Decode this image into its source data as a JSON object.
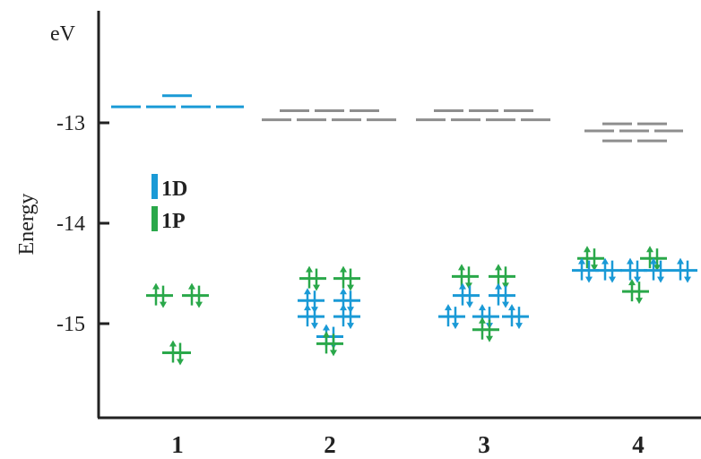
{
  "chart_data": {
    "type": "scatter",
    "title": "",
    "ylabel": "Energy",
    "yunit": "eV",
    "ylim": [
      -16.0,
      -11.9
    ],
    "yticks": [
      {
        "value": -13,
        "label": "-13"
      },
      {
        "value": -14,
        "label": "-14"
      },
      {
        "value": -15,
        "label": "-15"
      }
    ],
    "categories": [
      "1",
      "2",
      "3",
      "4"
    ],
    "grid": false,
    "legend_placement": "left",
    "legend": [
      {
        "name": "1D",
        "color": "#1a9ad6"
      },
      {
        "name": "1P",
        "color": "#2aa84a"
      }
    ],
    "columns": [
      {
        "category": "1",
        "unoccupied": [
          {
            "energy": -12.84,
            "color": "#1a9ad6"
          },
          {
            "energy": -12.84,
            "color": "#1a9ad6"
          },
          {
            "energy": -12.84,
            "color": "#1a9ad6"
          },
          {
            "energy": -12.84,
            "color": "#1a9ad6"
          },
          {
            "energy": -12.73,
            "color": "#1a9ad6"
          }
        ],
        "occupied": [
          {
            "energy": -14.72,
            "series": "1P"
          },
          {
            "energy": -14.72,
            "series": "1P"
          },
          {
            "energy": -15.29,
            "series": "1P"
          }
        ]
      },
      {
        "category": "2",
        "unoccupied": [
          {
            "energy": -12.97,
            "color": "#8e8e8e"
          },
          {
            "energy": -12.97,
            "color": "#8e8e8e"
          },
          {
            "energy": -12.97,
            "color": "#8e8e8e"
          },
          {
            "energy": -12.97,
            "color": "#8e8e8e"
          },
          {
            "energy": -12.88,
            "color": "#8e8e8e"
          },
          {
            "energy": -12.88,
            "color": "#8e8e8e"
          },
          {
            "energy": -12.88,
            "color": "#8e8e8e"
          }
        ],
        "occupied": [
          {
            "energy": -14.55,
            "series": "1P"
          },
          {
            "energy": -14.55,
            "series": "1P"
          },
          {
            "energy": -14.77,
            "series": "1D"
          },
          {
            "energy": -14.77,
            "series": "1D"
          },
          {
            "energy": -14.93,
            "series": "1D"
          },
          {
            "energy": -14.93,
            "series": "1D"
          },
          {
            "energy": -15.13,
            "series": "1D"
          },
          {
            "energy": -15.2,
            "series": "1P"
          }
        ]
      },
      {
        "category": "3",
        "unoccupied": [
          {
            "energy": -12.97,
            "color": "#8e8e8e"
          },
          {
            "energy": -12.97,
            "color": "#8e8e8e"
          },
          {
            "energy": -12.97,
            "color": "#8e8e8e"
          },
          {
            "energy": -12.97,
            "color": "#8e8e8e"
          },
          {
            "energy": -12.88,
            "color": "#8e8e8e"
          },
          {
            "energy": -12.88,
            "color": "#8e8e8e"
          },
          {
            "energy": -12.88,
            "color": "#8e8e8e"
          }
        ],
        "occupied": [
          {
            "energy": -14.53,
            "series": "1P"
          },
          {
            "energy": -14.53,
            "series": "1P"
          },
          {
            "energy": -14.72,
            "series": "1D"
          },
          {
            "energy": -14.72,
            "series": "1D"
          },
          {
            "energy": -14.93,
            "series": "1D"
          },
          {
            "energy": -14.93,
            "series": "1D"
          },
          {
            "energy": -14.93,
            "series": "1D"
          },
          {
            "energy": -15.06,
            "series": "1P"
          }
        ]
      },
      {
        "category": "4",
        "unoccupied": [
          {
            "energy": -13.08,
            "color": "#8e8e8e"
          },
          {
            "energy": -13.08,
            "color": "#8e8e8e"
          },
          {
            "energy": -13.08,
            "color": "#8e8e8e"
          },
          {
            "energy": -13.01,
            "color": "#8e8e8e"
          },
          {
            "energy": -13.01,
            "color": "#8e8e8e"
          },
          {
            "energy": -13.18,
            "color": "#8e8e8e"
          },
          {
            "energy": -13.18,
            "color": "#8e8e8e"
          }
        ],
        "occupied": [
          {
            "energy": -14.35,
            "series": "1P"
          },
          {
            "energy": -14.35,
            "series": "1P"
          },
          {
            "energy": -14.47,
            "series": "1D"
          },
          {
            "energy": -14.47,
            "series": "1D"
          },
          {
            "energy": -14.47,
            "series": "1D"
          },
          {
            "energy": -14.47,
            "series": "1D"
          },
          {
            "energy": -14.47,
            "series": "1D"
          },
          {
            "energy": -14.68,
            "series": "1P"
          }
        ]
      }
    ]
  }
}
